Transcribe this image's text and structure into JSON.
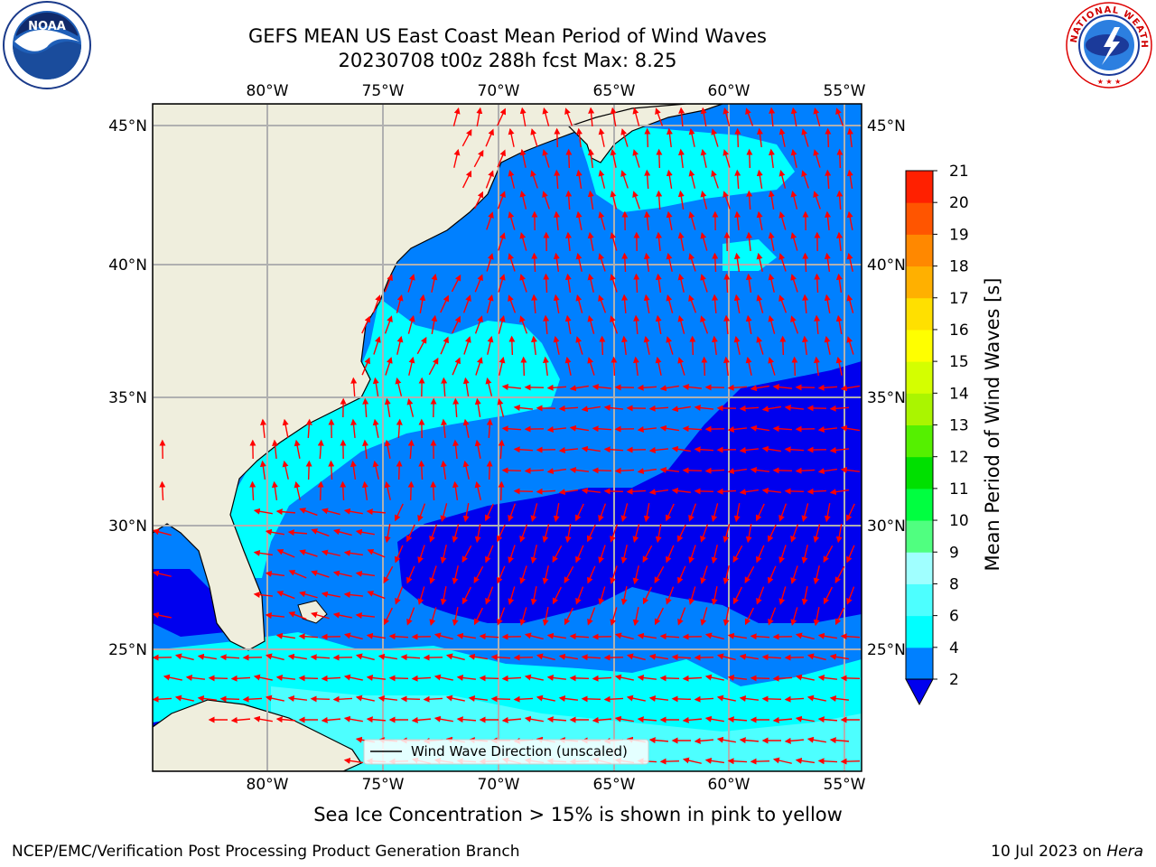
{
  "title": {
    "line1": "GEFS MEAN US East Coast Mean Period of Wind Waves",
    "line2": "20230708 t00z 288h fcst   Max: 8.25"
  },
  "map": {
    "lon_labels": [
      "80°W",
      "75°W",
      "70°W",
      "65°W",
      "60°W",
      "55°W"
    ],
    "lat_labels": [
      "45°N",
      "40°N",
      "35°N",
      "30°N",
      "25°N"
    ],
    "legend_label": "Wind Wave Direction (unscaled)",
    "colors": {
      "land": "#efeedd",
      "band_2_4": "#0080ff",
      "band_4_6": "#00ffff",
      "band_6_8": "#4dffff",
      "below_2": "#0000ee",
      "arrow": "#ff0000",
      "grid": "#b0b0b0"
    }
  },
  "colorbar": {
    "label": "Mean Period of Wind Waves [s]",
    "ticks": [
      "2",
      "4",
      "6",
      "8",
      "9",
      "10",
      "11",
      "12",
      "13",
      "14",
      "15",
      "16",
      "17",
      "18",
      "19",
      "20",
      "21"
    ],
    "colors": [
      "#0080ff",
      "#00ffff",
      "#4dffff",
      "#a0ffff",
      "#50ff80",
      "#00ff40",
      "#00e000",
      "#55f000",
      "#aaf500",
      "#d4ff00",
      "#ffff00",
      "#ffe000",
      "#ffb000",
      "#ff8800",
      "#ff5500",
      "#ff2000",
      "#ff0000"
    ],
    "extend_color": "#0000ee"
  },
  "caption": "Sea Ice Concentration > 15% is shown in pink to yellow",
  "footer": {
    "left": "NCEP/EMC/Verification Post Processing Product Generation Branch",
    "date": "10 Jul 2023 on ",
    "machine": "Hera"
  },
  "logos": {
    "noaa_text": "NOAA",
    "nws_text": "NATIONAL WEATHER SERVICE"
  }
}
